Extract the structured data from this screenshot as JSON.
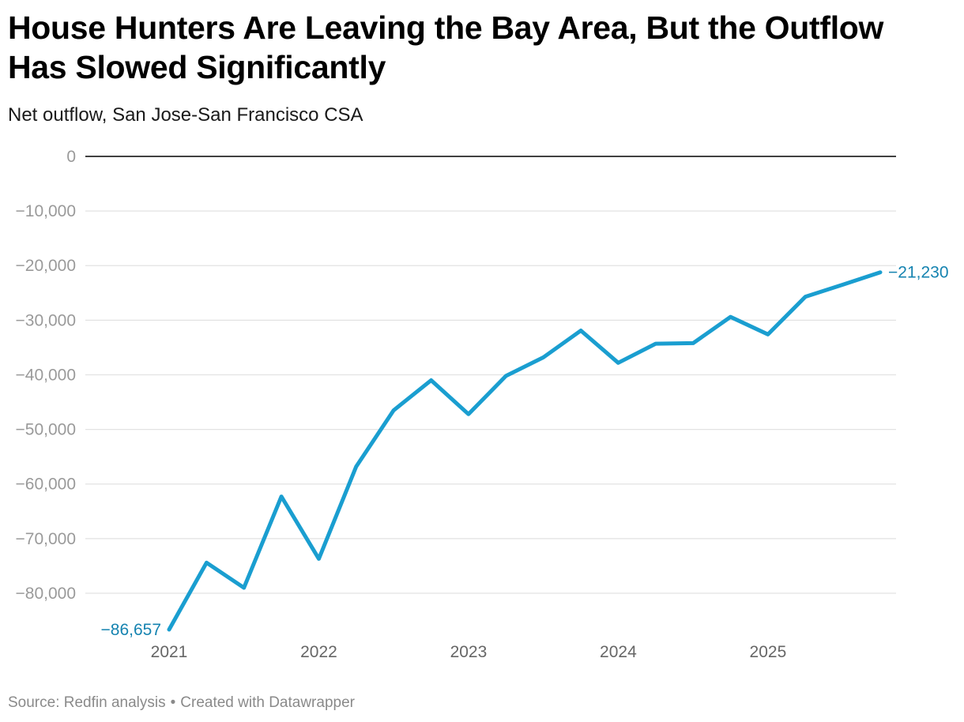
{
  "header": {
    "title": "House Hunters Are Leaving the Bay Area, But the Outflow Has Slowed Significantly",
    "subtitle": "Net outflow, San Jose-San Francisco CSA"
  },
  "footer": {
    "source": "Source: Redfin analysis",
    "separator": "•",
    "credit": "Created with Datawrapper"
  },
  "chart_data": {
    "type": "line",
    "title": "House Hunters Are Leaving the Bay Area, But the Outflow Has Slowed Significantly",
    "subtitle": "Net outflow, San Jose-San Francisco CSA",
    "xlabel": "",
    "ylabel": "",
    "ylim": [
      -86657,
      0
    ],
    "xlim": [
      2021.0,
      2025.75
    ],
    "grid": true,
    "legend": "none",
    "y_ticks": [
      0,
      -10000,
      -20000,
      -30000,
      -40000,
      -50000,
      -60000,
      -70000,
      -80000
    ],
    "y_tick_labels": [
      "0",
      "−10,000",
      "−20,000",
      "−30,000",
      "−40,000",
      "−50,000",
      "−60,000",
      "−70,000",
      "−80,000"
    ],
    "x_ticks": [
      2021,
      2022,
      2023,
      2024,
      2025
    ],
    "x_tick_labels": [
      "2021",
      "2022",
      "2023",
      "2024",
      "2025"
    ],
    "series": [
      {
        "color": "#1a9ed0",
        "x": [
          2021.0,
          2021.25,
          2021.5,
          2021.75,
          2022.0,
          2022.25,
          2022.5,
          2022.75,
          2023.0,
          2023.25,
          2023.5,
          2023.75,
          2024.0,
          2024.25,
          2024.5,
          2024.75,
          2025.0,
          2025.25,
          2025.5,
          2025.75
        ],
        "values": [
          -86657,
          -74400,
          -79000,
          -62300,
          -73700,
          -56800,
          -46500,
          -41000,
          -47200,
          -40200,
          -36800,
          -31900,
          -37800,
          -34300,
          -34200,
          -29400,
          -32600,
          -25700,
          -23500,
          -21230
        ]
      }
    ],
    "annotations": [
      {
        "label": "−86,657",
        "x": 2021.0,
        "y": -86657,
        "position": "left"
      },
      {
        "label": "−21,230",
        "x": 2025.75,
        "y": -21230,
        "position": "right"
      }
    ]
  }
}
